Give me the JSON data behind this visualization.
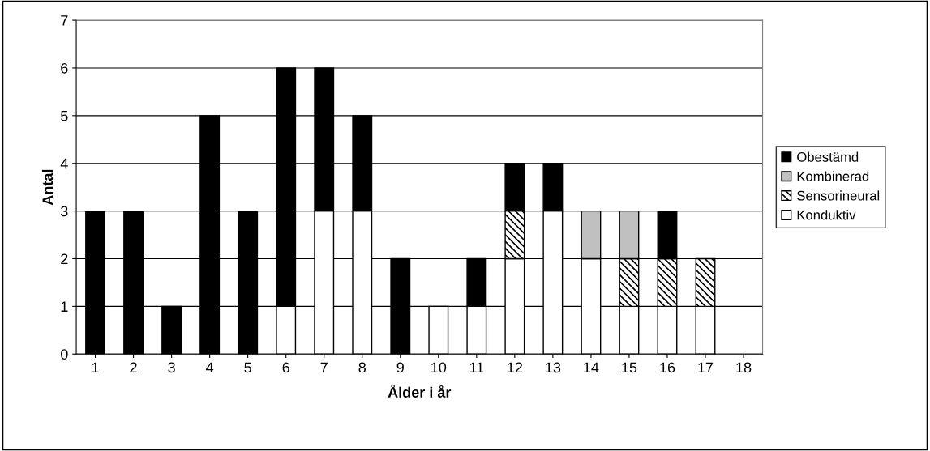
{
  "chart_data": {
    "type": "bar",
    "stacked": true,
    "xlabel": "Ålder i år",
    "ylabel": "Antal",
    "categories": [
      "1",
      "2",
      "3",
      "4",
      "5",
      "6",
      "7",
      "8",
      "9",
      "10",
      "11",
      "12",
      "13",
      "14",
      "15",
      "16",
      "17",
      "18"
    ],
    "series": [
      {
        "name": "Konduktiv",
        "color": "#ffffff",
        "values": [
          0,
          0,
          0,
          0,
          0,
          1,
          3,
          3,
          0,
          1,
          1,
          2,
          3,
          2,
          1,
          1,
          1,
          0
        ]
      },
      {
        "name": "Sensorineural",
        "color": "#000000",
        "values": [
          0,
          0,
          0,
          0,
          0,
          0,
          0,
          0,
          0,
          0,
          0,
          1,
          0,
          0,
          1,
          1,
          1,
          0
        ]
      },
      {
        "name": "Kombinerad",
        "color": "#c0c0c0",
        "values": [
          0,
          0,
          0,
          0,
          0,
          0,
          0,
          0,
          0,
          0,
          0,
          0,
          0,
          1,
          1,
          0,
          0,
          0
        ]
      },
      {
        "name": "Obestämd",
        "color": "#000000",
        "values": [
          3,
          3,
          1,
          5,
          3,
          5,
          3,
          2,
          2,
          0,
          1,
          1,
          1,
          0,
          0,
          1,
          0,
          0
        ]
      }
    ],
    "ylim": [
      0,
      7
    ],
    "yticks": [
      0,
      1,
      2,
      3,
      4,
      5,
      6,
      7
    ],
    "grid": "y",
    "legend": "right"
  }
}
